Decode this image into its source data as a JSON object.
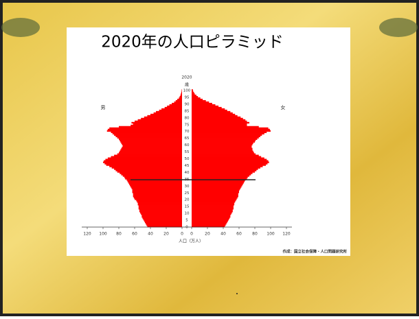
{
  "chart_data": {
    "type": "pyramid",
    "title": "2020年の人口ピラミッド",
    "year_label": "2020",
    "age_unit": "歳",
    "x_label": "人口（万人）",
    "source": "作成：国立社会保障・人口問題研究所",
    "categories": [
      0,
      1,
      2,
      3,
      4,
      5,
      6,
      7,
      8,
      9,
      10,
      11,
      12,
      13,
      14,
      15,
      16,
      17,
      18,
      19,
      20,
      21,
      22,
      23,
      24,
      25,
      26,
      27,
      28,
      29,
      30,
      31,
      32,
      33,
      34,
      35,
      36,
      37,
      38,
      39,
      40,
      41,
      42,
      43,
      44,
      45,
      46,
      47,
      48,
      49,
      50,
      51,
      52,
      53,
      54,
      55,
      56,
      57,
      58,
      59,
      60,
      61,
      62,
      63,
      64,
      65,
      66,
      67,
      68,
      69,
      70,
      71,
      72,
      73,
      74,
      75,
      76,
      77,
      78,
      79,
      80,
      81,
      82,
      83,
      84,
      85,
      86,
      87,
      88,
      89,
      90,
      91,
      92,
      93,
      94,
      95,
      96,
      97,
      98,
      99,
      100
    ],
    "series": [
      {
        "name": "男",
        "side": "left",
        "color": "#ff0000",
        "values": [
          44,
          45,
          46,
          47,
          48,
          49,
          50,
          51,
          51,
          52,
          53,
          54,
          54,
          55,
          55,
          55,
          56,
          56,
          57,
          58,
          60,
          61,
          62,
          62,
          62,
          63,
          63,
          63,
          64,
          65,
          66,
          67,
          68,
          69,
          70,
          72,
          73,
          75,
          77,
          79,
          82,
          84,
          86,
          89,
          92,
          96,
          98,
          100,
          99,
          97,
          94,
          90,
          86,
          82,
          80,
          79,
          78,
          77,
          76,
          75,
          76,
          77,
          78,
          79,
          80,
          82,
          84,
          86,
          88,
          90,
          95,
          94,
          92,
          80,
          65,
          62,
          64,
          60,
          56,
          52,
          48,
          44,
          40,
          36,
          33,
          29,
          26,
          22,
          19,
          16,
          13,
          10,
          8,
          6,
          4,
          3,
          2,
          1.5,
          1,
          0.6,
          0.4
        ]
      },
      {
        "name": "女",
        "side": "right",
        "color": "#ff0000",
        "values": [
          42,
          43,
          44,
          45,
          46,
          47,
          48,
          49,
          49,
          50,
          51,
          52,
          52,
          53,
          53,
          53,
          54,
          54,
          55,
          56,
          57,
          58,
          59,
          59,
          59,
          60,
          60,
          61,
          62,
          63,
          64,
          65,
          66,
          67,
          68,
          70,
          71,
          73,
          75,
          77,
          80,
          82,
          84,
          87,
          90,
          94,
          96,
          98,
          97,
          95,
          92,
          88,
          85,
          81,
          79,
          78,
          77,
          77,
          76,
          76,
          77,
          78,
          80,
          81,
          83,
          85,
          87,
          89,
          92,
          95,
          100,
          99,
          97,
          85,
          70,
          70,
          73,
          70,
          68,
          65,
          62,
          58,
          55,
          52,
          49,
          45,
          42,
          38,
          34,
          30,
          26,
          22,
          18,
          14,
          11,
          8,
          6,
          4,
          3,
          2,
          1.5
        ]
      }
    ],
    "xlim": [
      0,
      120
    ],
    "xticks": [
      0,
      20,
      40,
      60,
      80,
      100,
      120
    ],
    "ylim": [
      0,
      100
    ],
    "yticks": [
      0,
      5,
      10,
      15,
      20,
      25,
      30,
      35,
      40,
      45,
      50,
      55,
      60,
      65,
      70,
      75,
      80,
      85,
      90,
      95,
      100
    ]
  }
}
